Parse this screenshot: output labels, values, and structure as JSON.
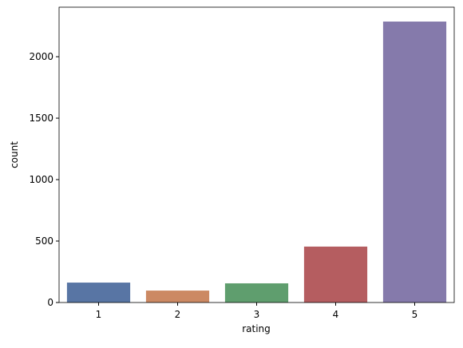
{
  "chart_data": {
    "type": "bar",
    "x_label": "rating",
    "y_label": "count",
    "categories": [
      "1",
      "2",
      "3",
      "4",
      "5"
    ],
    "values": [
      162,
      97,
      156,
      455,
      2286
    ],
    "colors": [
      "#5875a4",
      "#cc8963",
      "#5f9e6e",
      "#b55d60",
      "#857aab"
    ],
    "ylim": [
      0,
      2403
    ],
    "yticks": [
      0,
      500,
      1000,
      1500,
      2000
    ],
    "grid": false
  }
}
